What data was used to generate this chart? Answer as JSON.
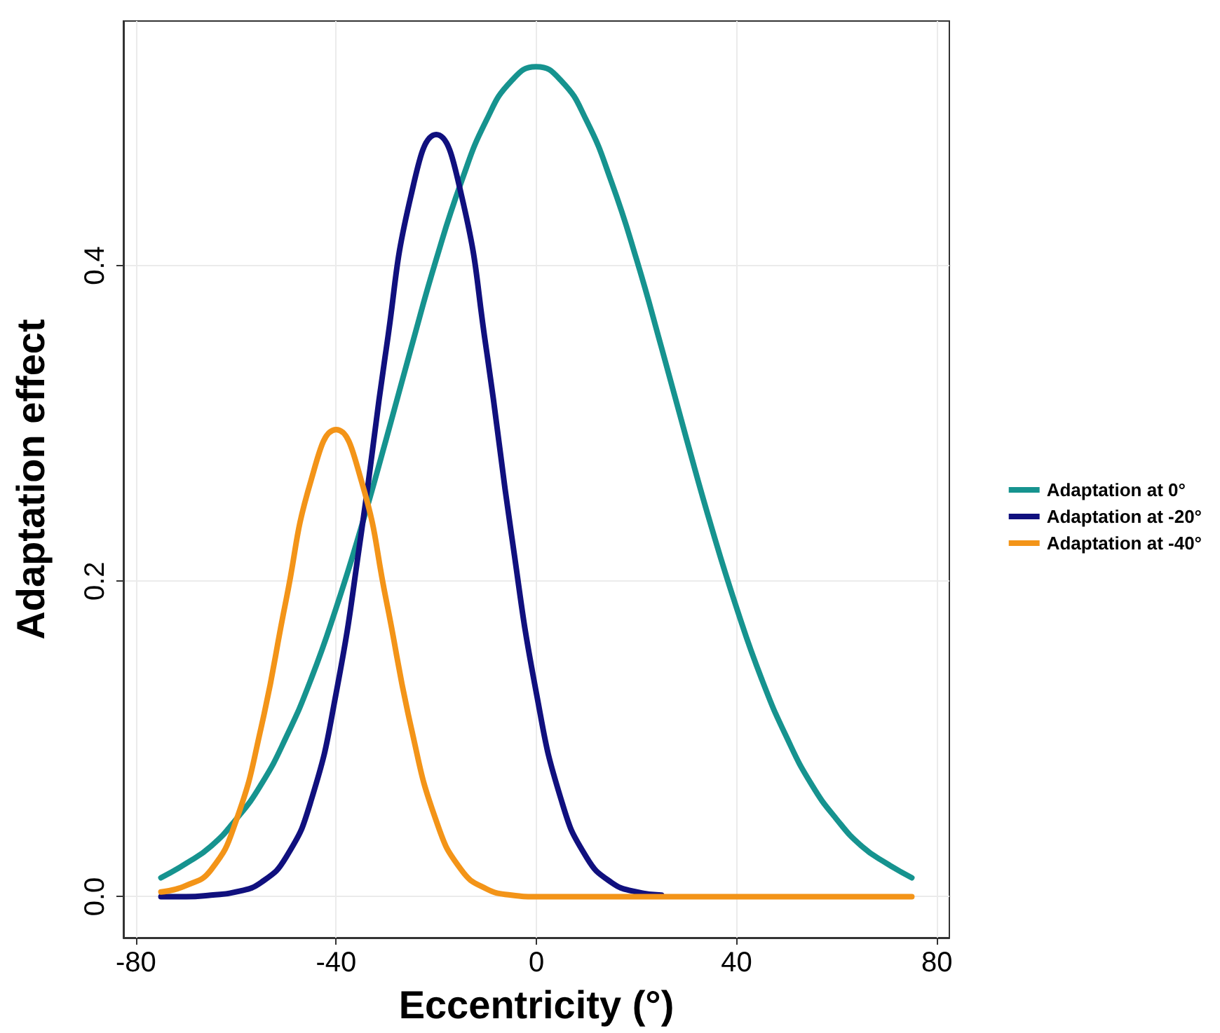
{
  "chart_data": {
    "type": "line",
    "xlabel": "Eccentricity (°)",
    "ylabel": "Adaptation effect",
    "xlim": [
      -82.5,
      82.5
    ],
    "xticks": [
      -80,
      -40,
      0,
      40,
      80
    ],
    "ylim": [
      -0.026,
      0.555
    ],
    "yticks": [
      {
        "value": 0,
        "label": "0.0"
      },
      {
        "value": 0.2,
        "label": "0.2"
      },
      {
        "value": 0.4,
        "label": "0.4"
      }
    ],
    "grid": true,
    "legend": "right",
    "marker": "none",
    "line_style": "solid",
    "series": [
      {
        "name": "Adaptation at 0°",
        "color": "#16938f",
        "x": [
          -75,
          -70,
          -65,
          -60,
          -55,
          -50,
          -45,
          -40,
          -35,
          -30,
          -25,
          -20,
          -15,
          -10,
          -5,
          0,
          5,
          10,
          15,
          20,
          25,
          30,
          35,
          40,
          45,
          50,
          55,
          60,
          65,
          70,
          75
        ],
        "values": [
          0.012,
          0.021,
          0.032,
          0.049,
          0.071,
          0.101,
          0.138,
          0.183,
          0.234,
          0.29,
          0.348,
          0.404,
          0.453,
          0.492,
          0.517,
          0.526,
          0.517,
          0.492,
          0.453,
          0.404,
          0.348,
          0.29,
          0.234,
          0.183,
          0.138,
          0.101,
          0.071,
          0.049,
          0.032,
          0.021,
          0.012
        ]
      },
      {
        "name": "Adaptation at -20°",
        "color": "#10107e",
        "x": [
          -75,
          -70,
          -65,
          -60,
          -55,
          -50,
          -45,
          -40,
          -35,
          -30,
          -25,
          -20,
          -15,
          -10,
          -5,
          0,
          5,
          10,
          15,
          20,
          25
        ],
        "values": [
          0.0,
          0.0,
          0.001,
          0.003,
          0.009,
          0.025,
          0.061,
          0.129,
          0.23,
          0.347,
          0.445,
          0.483,
          0.445,
          0.347,
          0.23,
          0.129,
          0.061,
          0.025,
          0.009,
          0.003,
          0.001
        ]
      },
      {
        "name": "Adaptation at -40°",
        "color": "#f39418",
        "x": [
          -75,
          -70,
          -65,
          -60,
          -55,
          -50,
          -45,
          -40,
          -35,
          -30,
          -25,
          -20,
          -15,
          -10,
          -5,
          0,
          5,
          10,
          15,
          20,
          25,
          30,
          35,
          40,
          45,
          50,
          55,
          60,
          65,
          70,
          75
        ],
        "values": [
          0.003,
          0.007,
          0.017,
          0.048,
          0.107,
          0.188,
          0.264,
          0.296,
          0.264,
          0.188,
          0.107,
          0.048,
          0.017,
          0.005,
          0.001,
          0,
          0,
          0,
          0,
          0,
          0,
          0,
          0,
          0,
          0,
          0,
          0,
          0,
          0,
          0,
          0
        ]
      }
    ]
  }
}
